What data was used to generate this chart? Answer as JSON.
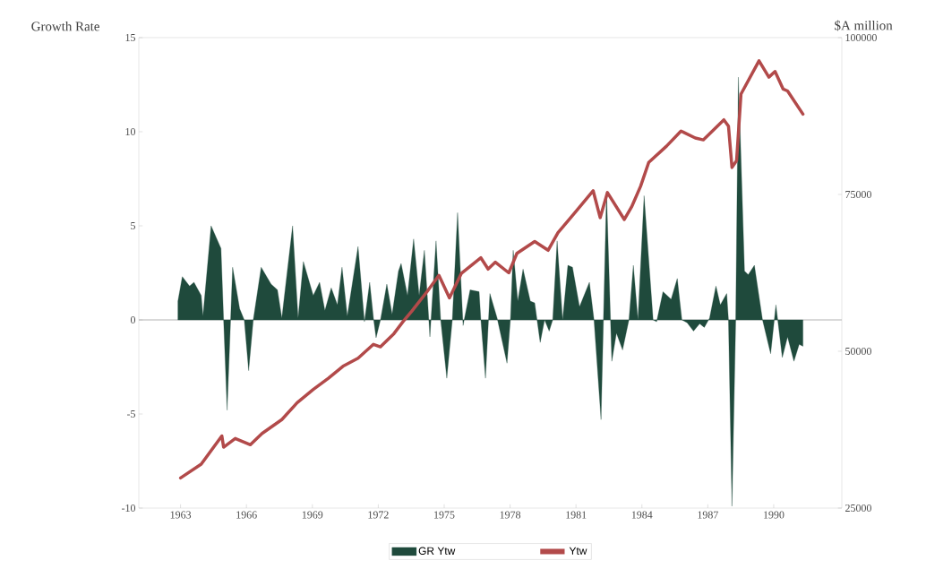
{
  "chart_data": {
    "type": "area",
    "ylabel": "Growth Rate",
    "y2label": "$A million",
    "xlim": [
      1961.1,
      1993.1
    ],
    "xticks": [
      1963,
      1966,
      1969,
      1972,
      1975,
      1978,
      1981,
      1984,
      1987,
      1990
    ],
    "ylim": [
      -10,
      15
    ],
    "yticks": [
      -10,
      -5,
      0,
      5,
      10,
      15
    ],
    "y2lim": [
      25000,
      100000
    ],
    "y2ticks": [
      25000,
      50000,
      75000,
      100000
    ],
    "grid": false,
    "legend": "bottom",
    "ref_lines": [
      {
        "axis": "y",
        "value": 0,
        "color": "#a0a0a0"
      }
    ],
    "series": [
      {
        "name": "GR Ytw",
        "color": "#1f4a3c",
        "x": [
          1962.88,
          1963.08,
          1963.41,
          1963.61,
          1963.94,
          1964.02,
          1964.39,
          1964.84,
          1964.96,
          1965.12,
          1965.37,
          1965.69,
          1965.9,
          1966.1,
          1966.31,
          1966.67,
          1967.12,
          1967.41,
          1967.61,
          1968.1,
          1968.35,
          1968.59,
          1969.04,
          1969.33,
          1969.57,
          1969.86,
          1970.14,
          1970.35,
          1970.59,
          1971.08,
          1971.37,
          1971.61,
          1971.78,
          1971.9,
          1972.1,
          1972.39,
          1972.63,
          1972.92,
          1973.04,
          1973.33,
          1973.61,
          1973.86,
          1974.1,
          1974.35,
          1974.63,
          1974.84,
          1975.12,
          1975.37,
          1975.61,
          1975.86,
          1976.18,
          1976.59,
          1976.67,
          1976.88,
          1977.08,
          1977.41,
          1977.86,
          1978.02,
          1978.14,
          1978.35,
          1978.59,
          1978.92,
          1979.12,
          1979.37,
          1979.57,
          1979.78,
          1979.94,
          1980.14,
          1980.39,
          1980.63,
          1980.84,
          1981.16,
          1981.61,
          1981.82,
          1982.14,
          1982.39,
          1982.63,
          1982.84,
          1983.12,
          1983.41,
          1983.61,
          1983.82,
          1984.1,
          1984.51,
          1984.67,
          1984.96,
          1985.33,
          1985.61,
          1985.82,
          1986.06,
          1986.35,
          1986.63,
          1986.84,
          1987.08,
          1987.37,
          1987.57,
          1987.86,
          1987.94,
          1988.1,
          1988.27,
          1988.39,
          1988.47,
          1988.67,
          1988.84,
          1989.12,
          1989.49,
          1989.86,
          1990.1,
          1990.39,
          1990.63,
          1990.92,
          1991.16,
          1991.33
        ],
        "values": [
          1.0,
          2.3,
          1.8,
          2.0,
          1.3,
          0.2,
          5.0,
          3.8,
          0,
          -4.8,
          2.8,
          0.6,
          0,
          -2.7,
          0,
          2.8,
          1.9,
          1.6,
          0.1,
          5.0,
          0.1,
          3.1,
          1.3,
          2.0,
          0.5,
          1.7,
          0.8,
          2.8,
          0.2,
          3.9,
          -0.1,
          2.0,
          0.1,
          -0.95,
          0,
          1.9,
          0.3,
          2.6,
          3.0,
          1.3,
          4.3,
          1.3,
          3.7,
          -0.9,
          4.2,
          0,
          -3.1,
          0,
          5.7,
          -0.3,
          1.6,
          1.5,
          0,
          -3.1,
          1.4,
          0.1,
          -2.3,
          0.1,
          3.7,
          1.0,
          2.7,
          1.0,
          0.9,
          -1.2,
          0,
          -0.6,
          0,
          4.2,
          0,
          2.9,
          2.8,
          0.7,
          2.0,
          0,
          -5.3,
          6.8,
          -2.2,
          -0.7,
          -1.6,
          0,
          2.9,
          0,
          6.6,
          0,
          -0.1,
          1.5,
          1.1,
          2.2,
          0,
          -0.15,
          -0.6,
          -0.2,
          -0.4,
          0.1,
          1.8,
          0.8,
          1.4,
          0,
          -9.9,
          0,
          12.9,
          10.1,
          2.6,
          2.4,
          2.9,
          0,
          -1.8,
          0.8,
          -2.0,
          -0.9,
          -2.2,
          -1.3,
          -1.4
        ]
      },
      {
        "name": "Ytw",
        "type": "line",
        "axis": "y2",
        "color": "#b24a4a",
        "x": [
          1963.0,
          1963.94,
          1964.88,
          1964.96,
          1965.49,
          1966.18,
          1966.71,
          1967.61,
          1968.31,
          1969.04,
          1969.73,
          1970.39,
          1971.08,
          1971.78,
          1972.1,
          1972.71,
          1973.12,
          1973.53,
          1974.22,
          1974.76,
          1975.24,
          1975.78,
          1976.67,
          1977.0,
          1977.33,
          1977.94,
          1978.31,
          1979.12,
          1979.73,
          1980.18,
          1981.0,
          1981.78,
          1982.1,
          1982.43,
          1983.2,
          1983.53,
          1983.94,
          1984.31,
          1985.12,
          1985.78,
          1986.43,
          1986.8,
          1987.73,
          1987.94,
          1988.1,
          1988.31,
          1988.51,
          1989.33,
          1989.78,
          1990.06,
          1990.43,
          1990.63,
          1991.33
        ],
        "values": [
          29800,
          32000,
          36500,
          34700,
          36100,
          35100,
          36900,
          39100,
          41800,
          43900,
          45700,
          47600,
          48900,
          51100,
          50700,
          52800,
          54700,
          56400,
          59500,
          62100,
          58500,
          62400,
          64900,
          63100,
          64200,
          62500,
          65600,
          67500,
          66100,
          68900,
          72300,
          75600,
          71300,
          75300,
          71000,
          73000,
          76300,
          80100,
          82700,
          85100,
          84000,
          83700,
          86900,
          85900,
          79300,
          80400,
          91000,
          96300,
          93700,
          94600,
          91800,
          91500,
          87800
        ]
      }
    ]
  }
}
